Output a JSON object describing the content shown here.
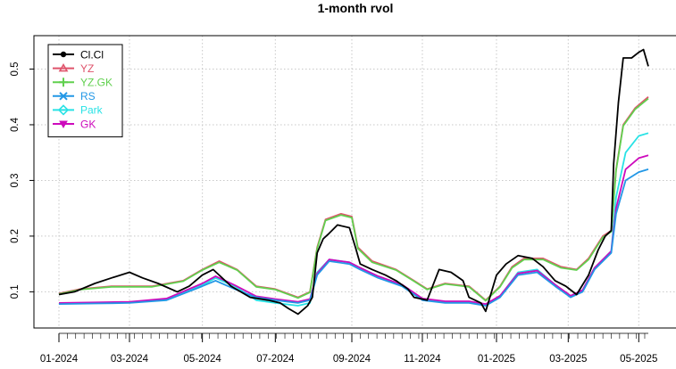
{
  "chart_data": {
    "type": "line",
    "title": "1-month rvol",
    "xlabel": "",
    "ylabel": "",
    "x_range": [
      "2024-01-02",
      "2025-05-09"
    ],
    "ylim": [
      0.035,
      0.56
    ],
    "y_ticks": [
      0.1,
      0.2,
      0.3,
      0.4,
      0.5
    ],
    "y_tick_labels": [
      "0.1",
      "0.2",
      "0.3",
      "0.4",
      "0.5"
    ],
    "x_ticks": [
      {
        "date": "2024-01-02",
        "label": "01-2024"
      },
      {
        "date": "2024-03-01",
        "label": "03-2024"
      },
      {
        "date": "2024-05-01",
        "label": "05-2024"
      },
      {
        "date": "2024-07-01",
        "label": "07-2024"
      },
      {
        "date": "2024-09-03",
        "label": "09-2024"
      },
      {
        "date": "2024-11-01",
        "label": "11-2024"
      },
      {
        "date": "2025-01-02",
        "label": "01-2025"
      },
      {
        "date": "2025-03-03",
        "label": "03-2025"
      },
      {
        "date": "2025-05-01",
        "label": "05-2025"
      }
    ],
    "grid": true,
    "legend_position": "top-left",
    "series": [
      {
        "name": "Cl.Cl",
        "color": "#000000",
        "marker": "circle",
        "points": [
          [
            "2024-01-02",
            0.095
          ],
          [
            "2024-01-15",
            0.1
          ],
          [
            "2024-02-01",
            0.115
          ],
          [
            "2024-02-15",
            0.125
          ],
          [
            "2024-03-01",
            0.135
          ],
          [
            "2024-03-12",
            0.125
          ],
          [
            "2024-03-25",
            0.115
          ],
          [
            "2024-04-10",
            0.1
          ],
          [
            "2024-04-20",
            0.11
          ],
          [
            "2024-05-01",
            0.13
          ],
          [
            "2024-05-10",
            0.14
          ],
          [
            "2024-05-25",
            0.11
          ],
          [
            "2024-06-10",
            0.09
          ],
          [
            "2024-06-25",
            0.085
          ],
          [
            "2024-07-05",
            0.08
          ],
          [
            "2024-07-12",
            0.07
          ],
          [
            "2024-07-20",
            0.06
          ],
          [
            "2024-07-28",
            0.075
          ],
          [
            "2024-08-01",
            0.09
          ],
          [
            "2024-08-05",
            0.17
          ],
          [
            "2024-08-10",
            0.195
          ],
          [
            "2024-08-15",
            0.205
          ],
          [
            "2024-08-22",
            0.22
          ],
          [
            "2024-09-01",
            0.215
          ],
          [
            "2024-09-06",
            0.18
          ],
          [
            "2024-09-10",
            0.15
          ],
          [
            "2024-09-20",
            0.14
          ],
          [
            "2024-10-01",
            0.13
          ],
          [
            "2024-10-10",
            0.12
          ],
          [
            "2024-10-20",
            0.105
          ],
          [
            "2024-10-25",
            0.09
          ],
          [
            "2024-11-05",
            0.085
          ],
          [
            "2024-11-15",
            0.14
          ],
          [
            "2024-11-25",
            0.135
          ],
          [
            "2024-12-05",
            0.12
          ],
          [
            "2024-12-10",
            0.09
          ],
          [
            "2024-12-20",
            0.08
          ],
          [
            "2024-12-24",
            0.065
          ],
          [
            "2025-01-02",
            0.13
          ],
          [
            "2025-01-10",
            0.15
          ],
          [
            "2025-01-20",
            0.165
          ],
          [
            "2025-02-01",
            0.16
          ],
          [
            "2025-02-10",
            0.145
          ],
          [
            "2025-02-20",
            0.12
          ],
          [
            "2025-03-01",
            0.11
          ],
          [
            "2025-03-10",
            0.095
          ],
          [
            "2025-03-20",
            0.13
          ],
          [
            "2025-03-28",
            0.175
          ],
          [
            "2025-04-03",
            0.2
          ],
          [
            "2025-04-08",
            0.21
          ],
          [
            "2025-04-10",
            0.33
          ],
          [
            "2025-04-14",
            0.44
          ],
          [
            "2025-04-18",
            0.52
          ],
          [
            "2025-04-25",
            0.52
          ],
          [
            "2025-05-01",
            0.53
          ],
          [
            "2025-05-05",
            0.535
          ],
          [
            "2025-05-09",
            0.505
          ]
        ]
      },
      {
        "name": "YZ",
        "color": "#DF536B",
        "marker": "triangle",
        "points": [
          [
            "2024-01-02",
            0.097
          ],
          [
            "2024-01-20",
            0.105
          ],
          [
            "2024-02-15",
            0.11
          ],
          [
            "2024-03-01",
            0.11
          ],
          [
            "2024-03-20",
            0.11
          ],
          [
            "2024-04-15",
            0.12
          ],
          [
            "2024-05-01",
            0.14
          ],
          [
            "2024-05-15",
            0.155
          ],
          [
            "2024-05-30",
            0.14
          ],
          [
            "2024-06-15",
            0.11
          ],
          [
            "2024-07-01",
            0.105
          ],
          [
            "2024-07-20",
            0.09
          ],
          [
            "2024-07-30",
            0.1
          ],
          [
            "2024-08-05",
            0.18
          ],
          [
            "2024-08-12",
            0.23
          ],
          [
            "2024-08-25",
            0.24
          ],
          [
            "2024-09-03",
            0.235
          ],
          [
            "2024-09-08",
            0.18
          ],
          [
            "2024-09-20",
            0.155
          ],
          [
            "2024-10-10",
            0.14
          ],
          [
            "2024-10-25",
            0.12
          ],
          [
            "2024-11-05",
            0.105
          ],
          [
            "2024-11-20",
            0.115
          ],
          [
            "2024-12-10",
            0.11
          ],
          [
            "2024-12-24",
            0.085
          ],
          [
            "2025-01-05",
            0.11
          ],
          [
            "2025-01-15",
            0.145
          ],
          [
            "2025-01-25",
            0.16
          ],
          [
            "2025-02-10",
            0.16
          ],
          [
            "2025-02-25",
            0.145
          ],
          [
            "2025-03-10",
            0.14
          ],
          [
            "2025-03-20",
            0.16
          ],
          [
            "2025-04-01",
            0.2
          ],
          [
            "2025-04-08",
            0.21
          ],
          [
            "2025-04-12",
            0.32
          ],
          [
            "2025-04-18",
            0.4
          ],
          [
            "2025-04-28",
            0.43
          ],
          [
            "2025-05-09",
            0.45
          ]
        ]
      },
      {
        "name": "YZ.GK",
        "color": "#61D04F",
        "marker": "plus",
        "points": [
          [
            "2024-01-02",
            0.096
          ],
          [
            "2024-01-20",
            0.104
          ],
          [
            "2024-02-15",
            0.109
          ],
          [
            "2024-03-01",
            0.109
          ],
          [
            "2024-03-20",
            0.109
          ],
          [
            "2024-04-15",
            0.119
          ],
          [
            "2024-05-01",
            0.139
          ],
          [
            "2024-05-15",
            0.153
          ],
          [
            "2024-05-30",
            0.139
          ],
          [
            "2024-06-15",
            0.109
          ],
          [
            "2024-07-01",
            0.104
          ],
          [
            "2024-07-20",
            0.089
          ],
          [
            "2024-07-30",
            0.099
          ],
          [
            "2024-08-05",
            0.178
          ],
          [
            "2024-08-12",
            0.228
          ],
          [
            "2024-08-25",
            0.238
          ],
          [
            "2024-09-03",
            0.233
          ],
          [
            "2024-09-08",
            0.178
          ],
          [
            "2024-09-20",
            0.153
          ],
          [
            "2024-10-10",
            0.139
          ],
          [
            "2024-10-25",
            0.119
          ],
          [
            "2024-11-05",
            0.104
          ],
          [
            "2024-11-20",
            0.114
          ],
          [
            "2024-12-10",
            0.109
          ],
          [
            "2024-12-24",
            0.084
          ],
          [
            "2025-01-05",
            0.109
          ],
          [
            "2025-01-15",
            0.143
          ],
          [
            "2025-01-25",
            0.158
          ],
          [
            "2025-02-10",
            0.158
          ],
          [
            "2025-02-25",
            0.143
          ],
          [
            "2025-03-10",
            0.139
          ],
          [
            "2025-03-20",
            0.158
          ],
          [
            "2025-04-01",
            0.198
          ],
          [
            "2025-04-08",
            0.208
          ],
          [
            "2025-04-12",
            0.318
          ],
          [
            "2025-04-18",
            0.398
          ],
          [
            "2025-04-28",
            0.428
          ],
          [
            "2025-05-09",
            0.447
          ]
        ]
      },
      {
        "name": "RS",
        "color": "#2297E6",
        "marker": "cross",
        "points": [
          [
            "2024-01-02",
            0.078
          ],
          [
            "2024-02-01",
            0.079
          ],
          [
            "2024-03-01",
            0.08
          ],
          [
            "2024-04-01",
            0.085
          ],
          [
            "2024-05-01",
            0.11
          ],
          [
            "2024-05-12",
            0.12
          ],
          [
            "2024-05-28",
            0.105
          ],
          [
            "2024-06-15",
            0.09
          ],
          [
            "2024-07-01",
            0.085
          ],
          [
            "2024-07-20",
            0.08
          ],
          [
            "2024-07-30",
            0.085
          ],
          [
            "2024-08-05",
            0.13
          ],
          [
            "2024-08-15",
            0.155
          ],
          [
            "2024-09-01",
            0.15
          ],
          [
            "2024-09-10",
            0.14
          ],
          [
            "2024-09-25",
            0.125
          ],
          [
            "2024-10-15",
            0.11
          ],
          [
            "2024-11-01",
            0.085
          ],
          [
            "2024-11-20",
            0.08
          ],
          [
            "2024-12-10",
            0.08
          ],
          [
            "2024-12-24",
            0.075
          ],
          [
            "2025-01-05",
            0.09
          ],
          [
            "2025-01-20",
            0.13
          ],
          [
            "2025-02-05",
            0.135
          ],
          [
            "2025-02-20",
            0.11
          ],
          [
            "2025-03-05",
            0.09
          ],
          [
            "2025-03-15",
            0.1
          ],
          [
            "2025-03-25",
            0.14
          ],
          [
            "2025-04-08",
            0.17
          ],
          [
            "2025-04-12",
            0.24
          ],
          [
            "2025-04-20",
            0.3
          ],
          [
            "2025-05-01",
            0.315
          ],
          [
            "2025-05-09",
            0.32
          ]
        ]
      },
      {
        "name": "Park",
        "color": "#28E2E5",
        "marker": "diamond",
        "points": [
          [
            "2024-01-02",
            0.079
          ],
          [
            "2024-02-01",
            0.08
          ],
          [
            "2024-03-01",
            0.081
          ],
          [
            "2024-04-01",
            0.087
          ],
          [
            "2024-05-01",
            0.112
          ],
          [
            "2024-05-12",
            0.125
          ],
          [
            "2024-05-28",
            0.11
          ],
          [
            "2024-06-15",
            0.085
          ],
          [
            "2024-07-01",
            0.08
          ],
          [
            "2024-07-20",
            0.075
          ],
          [
            "2024-07-30",
            0.08
          ],
          [
            "2024-08-05",
            0.135
          ],
          [
            "2024-08-15",
            0.158
          ],
          [
            "2024-09-01",
            0.153
          ],
          [
            "2024-09-10",
            0.143
          ],
          [
            "2024-09-25",
            0.128
          ],
          [
            "2024-10-15",
            0.112
          ],
          [
            "2024-11-01",
            0.087
          ],
          [
            "2024-11-20",
            0.082
          ],
          [
            "2024-12-10",
            0.082
          ],
          [
            "2024-12-24",
            0.077
          ],
          [
            "2025-01-05",
            0.092
          ],
          [
            "2025-01-20",
            0.135
          ],
          [
            "2025-02-05",
            0.14
          ],
          [
            "2025-02-20",
            0.113
          ],
          [
            "2025-03-05",
            0.092
          ],
          [
            "2025-03-15",
            0.103
          ],
          [
            "2025-03-25",
            0.143
          ],
          [
            "2025-04-08",
            0.173
          ],
          [
            "2025-04-12",
            0.27
          ],
          [
            "2025-04-20",
            0.35
          ],
          [
            "2025-05-01",
            0.38
          ],
          [
            "2025-05-09",
            0.385
          ]
        ]
      },
      {
        "name": "GK",
        "color": "#CD0BBC",
        "marker": "triangle-down",
        "points": [
          [
            "2024-01-02",
            0.08
          ],
          [
            "2024-02-01",
            0.081
          ],
          [
            "2024-03-01",
            0.082
          ],
          [
            "2024-04-01",
            0.088
          ],
          [
            "2024-05-01",
            0.115
          ],
          [
            "2024-05-12",
            0.128
          ],
          [
            "2024-05-28",
            0.112
          ],
          [
            "2024-06-15",
            0.092
          ],
          [
            "2024-07-01",
            0.087
          ],
          [
            "2024-07-20",
            0.082
          ],
          [
            "2024-07-30",
            0.087
          ],
          [
            "2024-08-05",
            0.133
          ],
          [
            "2024-08-15",
            0.158
          ],
          [
            "2024-09-01",
            0.153
          ],
          [
            "2024-09-10",
            0.143
          ],
          [
            "2024-09-25",
            0.128
          ],
          [
            "2024-10-15",
            0.113
          ],
          [
            "2024-11-01",
            0.088
          ],
          [
            "2024-11-20",
            0.083
          ],
          [
            "2024-12-10",
            0.083
          ],
          [
            "2024-12-24",
            0.078
          ],
          [
            "2025-01-05",
            0.093
          ],
          [
            "2025-01-20",
            0.133
          ],
          [
            "2025-02-05",
            0.138
          ],
          [
            "2025-02-20",
            0.113
          ],
          [
            "2025-03-05",
            0.093
          ],
          [
            "2025-03-15",
            0.103
          ],
          [
            "2025-03-25",
            0.143
          ],
          [
            "2025-04-08",
            0.173
          ],
          [
            "2025-04-12",
            0.25
          ],
          [
            "2025-04-20",
            0.32
          ],
          [
            "2025-05-01",
            0.34
          ],
          [
            "2025-05-09",
            0.345
          ]
        ]
      }
    ]
  }
}
